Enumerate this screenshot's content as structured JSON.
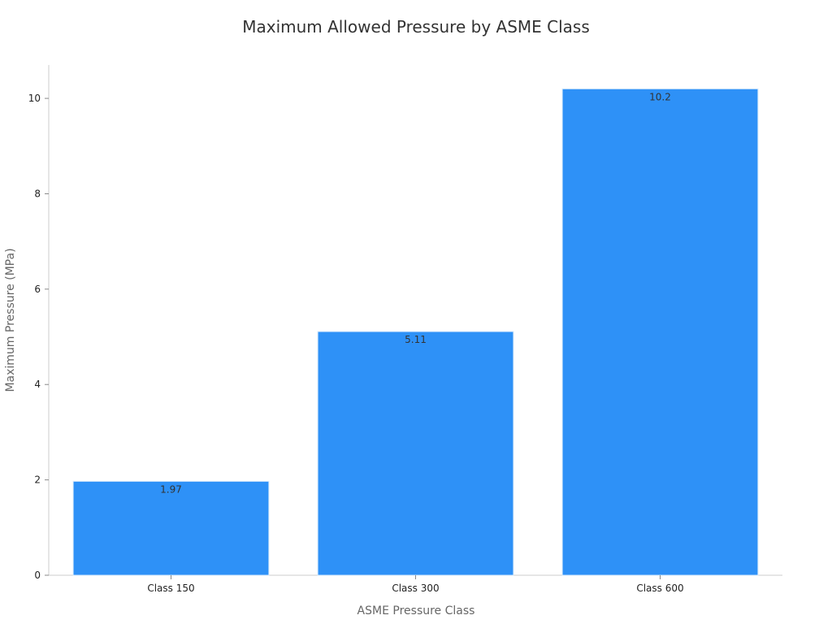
{
  "chart_data": {
    "type": "bar",
    "title": "Maximum Allowed Pressure by ASME Class",
    "xlabel": "ASME Pressure Class",
    "ylabel": "Maximum Pressure (MPa)",
    "categories": [
      "Class 150",
      "Class 300",
      "Class 600"
    ],
    "values": [
      1.97,
      5.11,
      10.2
    ],
    "data_labels": [
      "1.97",
      "5.11",
      "10.2"
    ],
    "ylim": [
      0,
      10.7
    ],
    "yticks": [
      0,
      2,
      4,
      6,
      8,
      10
    ],
    "ytick_labels": [
      "0",
      "2",
      "4",
      "6",
      "8",
      "10"
    ],
    "grid": false,
    "legend": "none",
    "colors": {
      "bar": "#2e91f7",
      "bar_edge": "#d6e9fb",
      "axis": "#cccccc",
      "tick": "#888888"
    }
  }
}
